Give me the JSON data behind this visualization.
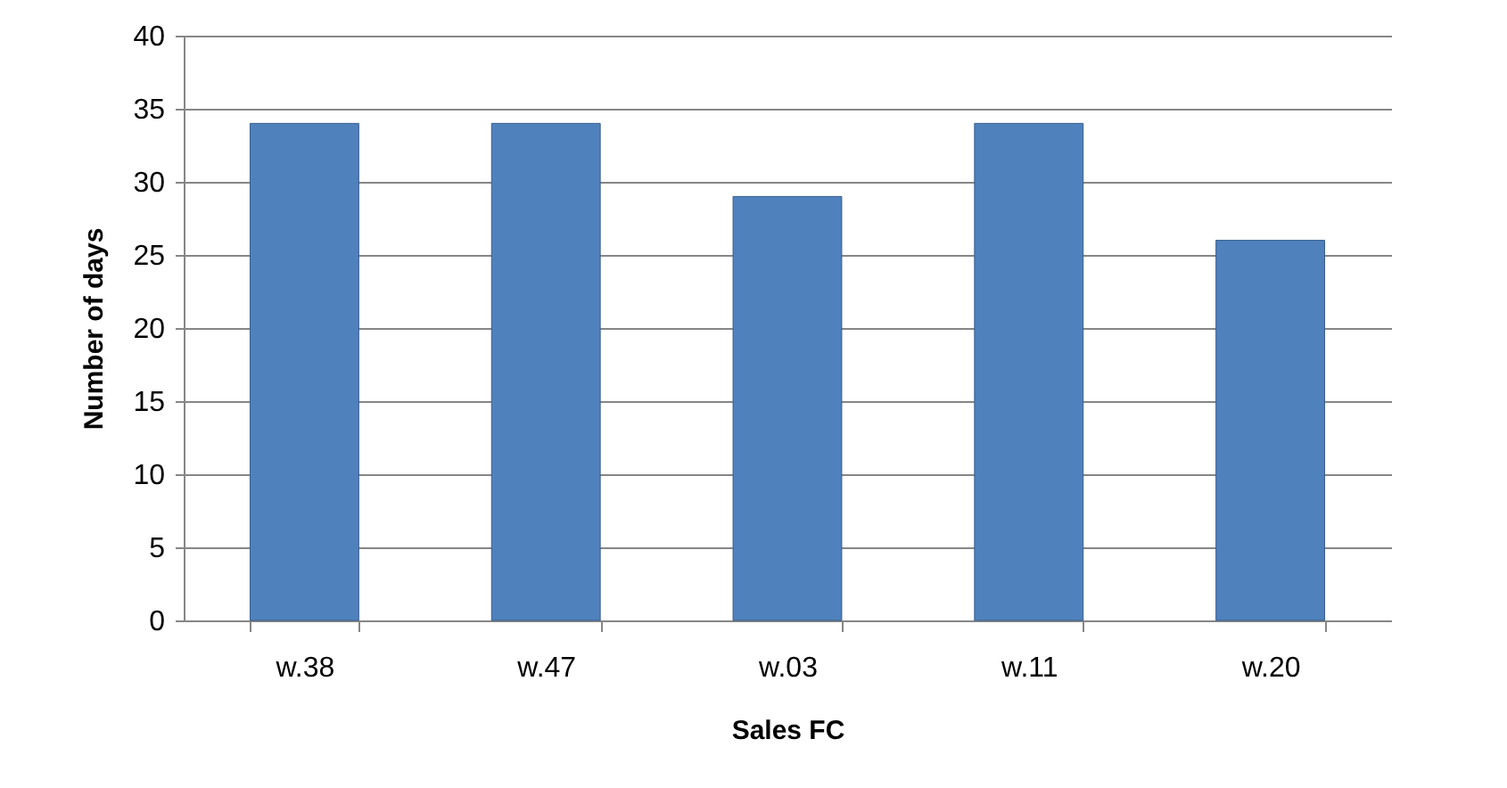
{
  "chart_data": {
    "type": "bar",
    "xlabel": "Sales FC",
    "ylabel": "Number of days",
    "categories": [
      "w.38",
      "w.47",
      "w.03",
      "w.11",
      "w.20"
    ],
    "values": [
      34,
      34,
      29,
      34,
      26
    ],
    "color": "#4f81bd",
    "ylim": [
      0,
      40
    ],
    "yticks": [
      0,
      5,
      10,
      15,
      20,
      25,
      30,
      35,
      40
    ],
    "grid": "y"
  }
}
